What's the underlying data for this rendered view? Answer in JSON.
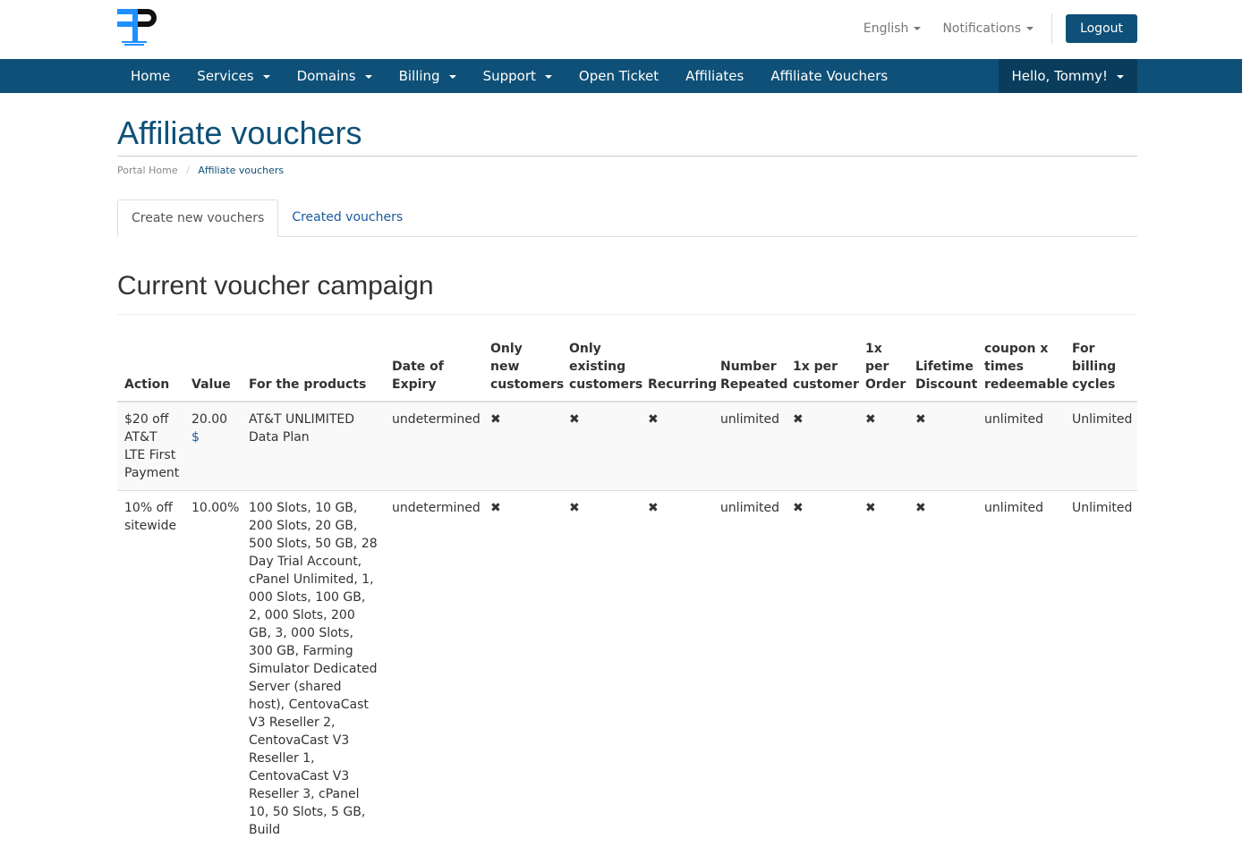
{
  "header": {
    "logo_text": "FREEPACKET HOSTING",
    "language": "English",
    "notifications": "Notifications",
    "logout": "Logout"
  },
  "nav": {
    "items": [
      "Home",
      "Services",
      "Domains",
      "Billing",
      "Support",
      "Open Ticket",
      "Affiliates",
      "Affiliate Vouchers"
    ],
    "dropdowns": [
      false,
      true,
      true,
      true,
      true,
      false,
      false,
      false
    ],
    "user": "Hello, Tommy!"
  },
  "page": {
    "title": "Affiliate vouchers",
    "breadcrumb": [
      "Portal Home",
      "Affiliate vouchers"
    ],
    "tabs": [
      "Create new vouchers",
      "Created vouchers"
    ],
    "section_title": "Current voucher campaign"
  },
  "table": {
    "headers": [
      "Action",
      "Value",
      "For the products",
      "Date of Expiry",
      "Only new customers",
      "Only existing customers",
      "Recurring",
      "Number Repeated",
      "1x per customer",
      "1x per Order",
      "Lifetime Discount",
      "coupon x times redeemable",
      "For billing cycles"
    ],
    "rows": [
      {
        "action": "$20 off AT&T LTE First Payment",
        "value": "20.00",
        "currency": "$",
        "products": "AT&T UNLIMITED Data Plan",
        "expiry": "undetermined",
        "only_new": "✖",
        "only_existing": "✖",
        "recurring": "✖",
        "repeated": "unlimited",
        "per_customer": "✖",
        "per_order": "✖",
        "lifetime": "✖",
        "redeemable": "unlimited",
        "cycles": "Unlimited"
      },
      {
        "action": "10% off sitewide",
        "value": "10.00%",
        "currency": "",
        "products": "100 Slots, 10 GB, 200 Slots, 20 GB, 500 Slots, 50 GB, 28 Day Trial Account, cPanel Unlimited, 1, 000 Slots, 100 GB, 2, 000 Slots, 200 GB, 3, 000 Slots, 300 GB, Farming Simulator Dedicated Server (shared host), CentovaCast V3 Reseller 2, CentovaCast V3 Reseller 1, CentovaCast V3 Reseller 3, cPanel 10, 50 Slots, 5 GB, Build",
        "expiry": "undetermined",
        "only_new": "✖",
        "only_existing": "✖",
        "recurring": "✖",
        "repeated": "unlimited",
        "per_customer": "✖",
        "per_order": "✖",
        "lifetime": "✖",
        "redeemable": "unlimited",
        "cycles": "Unlimited"
      }
    ]
  }
}
